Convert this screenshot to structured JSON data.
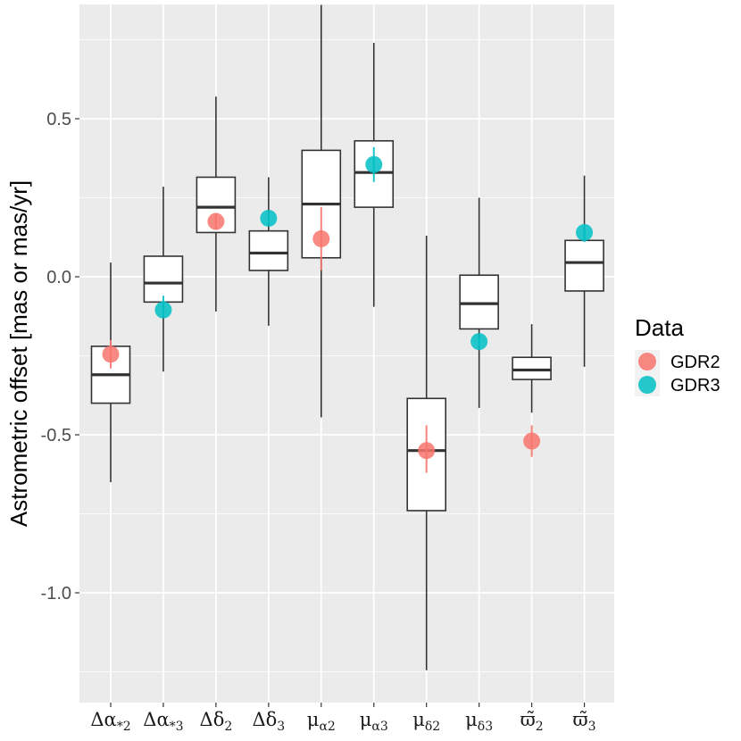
{
  "chart_data": {
    "type": "boxplot",
    "ylabel": "Astrometric offset [mas or mas/yr]",
    "ylim": [
      -1.3,
      0.85
    ],
    "yticks": [
      0.5,
      0.0,
      -0.5,
      -1.0
    ],
    "ytick_labels": [
      "0.5",
      "0.0",
      "-0.5",
      "-1.0"
    ],
    "categories": [
      {
        "main": "Δα",
        "sub": "*2"
      },
      {
        "main": "Δα",
        "sub": "*3"
      },
      {
        "main": "Δδ",
        "sub": "2"
      },
      {
        "main": "Δδ",
        "sub": "3"
      },
      {
        "main": "μ",
        "sub": "α2"
      },
      {
        "main": "μ",
        "sub": "α3"
      },
      {
        "main": "μ",
        "sub": "δ2"
      },
      {
        "main": "μ",
        "sub": "δ3"
      },
      {
        "main": "ϖ̃",
        "sub": "2"
      },
      {
        "main": "ϖ̃",
        "sub": "3"
      }
    ],
    "boxes": [
      {
        "whisker_low": -0.65,
        "q1": -0.4,
        "median": -0.31,
        "q3": -0.22,
        "whisker_high": 0.045
      },
      {
        "whisker_low": -0.3,
        "q1": -0.08,
        "median": -0.02,
        "q3": 0.065,
        "whisker_high": 0.285
      },
      {
        "whisker_low": -0.11,
        "q1": 0.14,
        "median": 0.22,
        "q3": 0.315,
        "whisker_high": 0.57
      },
      {
        "whisker_low": -0.155,
        "q1": 0.02,
        "median": 0.075,
        "q3": 0.145,
        "whisker_high": 0.315
      },
      {
        "whisker_low": -0.445,
        "q1": 0.06,
        "median": 0.23,
        "q3": 0.4,
        "whisker_high": 0.86
      },
      {
        "whisker_low": -0.095,
        "q1": 0.22,
        "median": 0.33,
        "q3": 0.43,
        "whisker_high": 0.74
      },
      {
        "whisker_low": -1.245,
        "q1": -0.74,
        "median": -0.55,
        "q3": -0.385,
        "whisker_high": 0.13
      },
      {
        "whisker_low": -0.415,
        "q1": -0.165,
        "median": -0.085,
        "q3": 0.005,
        "whisker_high": 0.25
      },
      {
        "whisker_low": -0.43,
        "q1": -0.325,
        "median": -0.295,
        "q3": -0.255,
        "whisker_high": -0.15
      },
      {
        "whisker_low": -0.285,
        "q1": -0.045,
        "median": 0.045,
        "q3": 0.115,
        "whisker_high": 0.32
      }
    ],
    "series": [
      {
        "name": "GDR2",
        "color": "#F8766D",
        "points": [
          {
            "category_index": 0,
            "value": -0.245,
            "err_low": -0.29,
            "err_high": -0.2
          },
          {
            "category_index": 2,
            "value": 0.175,
            "err_low": 0.15,
            "err_high": 0.2
          },
          {
            "category_index": 4,
            "value": 0.12,
            "err_low": 0.02,
            "err_high": 0.22
          },
          {
            "category_index": 6,
            "value": -0.55,
            "err_low": -0.62,
            "err_high": -0.47
          },
          {
            "category_index": 8,
            "value": -0.52,
            "err_low": -0.57,
            "err_high": -0.47
          }
        ]
      },
      {
        "name": "GDR3",
        "color": "#00BFC4",
        "points": [
          {
            "category_index": 1,
            "value": -0.105,
            "err_low": -0.125,
            "err_high": -0.06
          },
          {
            "category_index": 3,
            "value": 0.185,
            "err_low": 0.17,
            "err_high": 0.2
          },
          {
            "category_index": 5,
            "value": 0.355,
            "err_low": 0.3,
            "err_high": 0.41
          },
          {
            "category_index": 7,
            "value": -0.205,
            "err_low": -0.22,
            "err_high": -0.19
          },
          {
            "category_index": 9,
            "value": 0.14,
            "err_low": 0.11,
            "err_high": 0.165
          }
        ]
      }
    ],
    "legend": {
      "title": "Data",
      "position": "right",
      "entries": [
        "GDR2",
        "GDR3"
      ]
    }
  }
}
